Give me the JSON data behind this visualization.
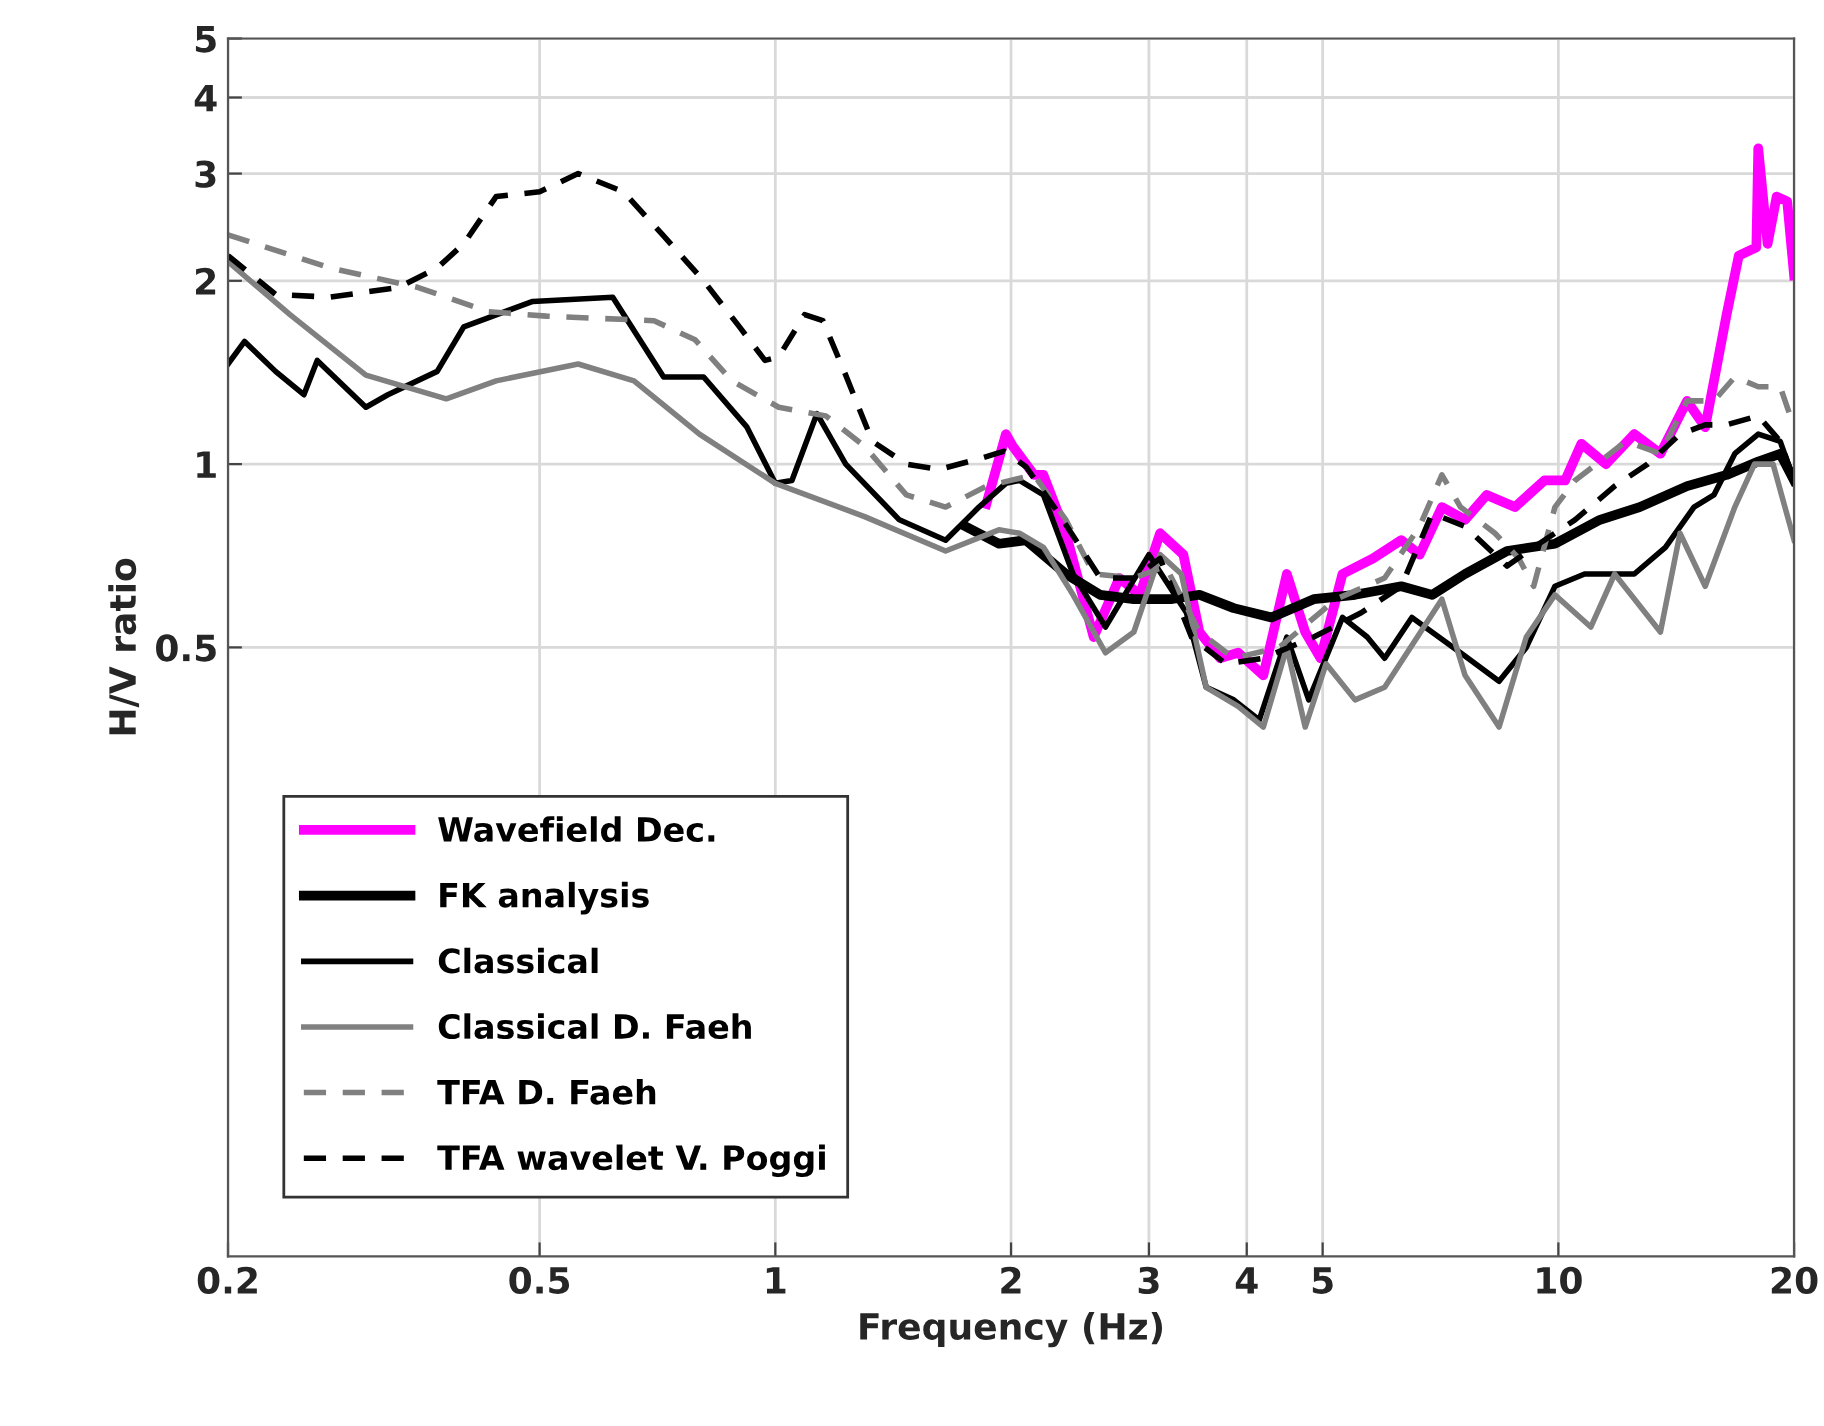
{
  "chart_data": {
    "type": "line",
    "xlabel": "Frequency (Hz)",
    "ylabel": "H/V ratio",
    "log": "xy",
    "grid": true,
    "legend": "bottom left",
    "xlim": [
      0.2,
      20
    ],
    "ylim": [
      0.05,
      5
    ],
    "xticks": [
      0.2,
      0.5,
      1,
      2,
      3,
      4,
      5,
      10,
      20
    ],
    "yticks": [
      0.5,
      1,
      2,
      3,
      4,
      5
    ],
    "series": [
      {
        "name": "Wavefield Dec.",
        "color": "#ff00ff",
        "line_style": "solid",
        "x": [
          1.86,
          1.97,
          2.01,
          2.14,
          2.2,
          2.35,
          2.55,
          2.75,
          2.92,
          3.1,
          3.32,
          3.48,
          3.7,
          3.9,
          4.2,
          4.5,
          4.75,
          4.97,
          5.3,
          5.8,
          6.3,
          6.65,
          7.1,
          7.6,
          8.1,
          8.8,
          9.6,
          10.2,
          10.7,
          11.5,
          12.5,
          13.5,
          14.6,
          15.4,
          16.4,
          17.0,
          17.9,
          18.0,
          18.5,
          19.0,
          19.6,
          20.0
        ],
        "values": [
          0.86,
          1.12,
          1.07,
          0.96,
          0.96,
          0.77,
          0.52,
          0.65,
          0.61,
          0.77,
          0.71,
          0.53,
          0.48,
          0.49,
          0.45,
          0.66,
          0.53,
          0.48,
          0.66,
          0.7,
          0.75,
          0.71,
          0.85,
          0.81,
          0.89,
          0.85,
          0.94,
          0.94,
          1.08,
          1.0,
          1.12,
          1.04,
          1.27,
          1.15,
          1.76,
          2.2,
          2.27,
          3.3,
          2.3,
          2.75,
          2.7,
          2.04
        ]
      },
      {
        "name": "FK analysis",
        "color": "#000000",
        "line_style": "solid",
        "x": [
          1.75,
          1.93,
          2.09,
          2.35,
          2.6,
          2.87,
          3.2,
          3.48,
          3.85,
          4.3,
          4.87,
          5.5,
          6.3,
          6.9,
          7.6,
          8.6,
          9.9,
          11.3,
          12.7,
          14.6,
          16.4,
          18.0,
          19.2,
          20.0
        ],
        "values": [
          0.79,
          0.74,
          0.75,
          0.66,
          0.61,
          0.6,
          0.6,
          0.61,
          0.58,
          0.56,
          0.6,
          0.61,
          0.63,
          0.61,
          0.66,
          0.72,
          0.74,
          0.81,
          0.85,
          0.92,
          0.96,
          1.01,
          1.04,
          0.94
        ]
      },
      {
        "name": "Classical",
        "color": "#000000",
        "line_style": "solid",
        "x": [
          0.2,
          0.21,
          0.23,
          0.25,
          0.26,
          0.3,
          0.32,
          0.37,
          0.4,
          0.49,
          0.62,
          0.72,
          0.81,
          0.92,
          1.0,
          1.05,
          1.13,
          1.23,
          1.44,
          1.65,
          1.82,
          1.97,
          2.05,
          2.2,
          2.4,
          2.64,
          3.0,
          3.35,
          3.55,
          3.85,
          4.15,
          4.5,
          4.8,
          5.3,
          5.7,
          6.0,
          6.5,
          7.5,
          8.4,
          9.1,
          9.9,
          10.8,
          12.5,
          13.7,
          14.9,
          15.8,
          16.8,
          18.0,
          19.2,
          20.0
        ],
        "values": [
          1.46,
          1.59,
          1.42,
          1.3,
          1.48,
          1.24,
          1.3,
          1.42,
          1.68,
          1.85,
          1.88,
          1.39,
          1.39,
          1.15,
          0.93,
          0.94,
          1.21,
          1.0,
          0.81,
          0.75,
          0.85,
          0.93,
          0.94,
          0.89,
          0.66,
          0.54,
          0.71,
          0.57,
          0.43,
          0.41,
          0.38,
          0.52,
          0.41,
          0.56,
          0.52,
          0.48,
          0.56,
          0.49,
          0.44,
          0.5,
          0.63,
          0.66,
          0.66,
          0.73,
          0.85,
          0.89,
          1.04,
          1.12,
          1.09,
          0.94
        ]
      },
      {
        "name": "Classical D. Faeh",
        "color": "#808080",
        "line_style": "solid",
        "x": [
          0.2,
          0.24,
          0.3,
          0.38,
          0.44,
          0.56,
          0.66,
          0.8,
          1.0,
          1.3,
          1.65,
          1.93,
          2.05,
          2.2,
          2.4,
          2.64,
          2.87,
          3.1,
          3.3,
          3.55,
          3.9,
          4.2,
          4.5,
          4.75,
          5.05,
          5.5,
          6.0,
          7.1,
          7.6,
          8.4,
          9.1,
          9.9,
          11.0,
          11.8,
          13.5,
          14.3,
          15.4,
          16.8,
          17.8,
          18.8,
          20.0
        ],
        "values": [
          2.15,
          1.76,
          1.4,
          1.28,
          1.37,
          1.46,
          1.37,
          1.12,
          0.93,
          0.82,
          0.72,
          0.78,
          0.77,
          0.73,
          0.61,
          0.49,
          0.53,
          0.71,
          0.66,
          0.43,
          0.4,
          0.37,
          0.5,
          0.37,
          0.47,
          0.41,
          0.43,
          0.6,
          0.45,
          0.37,
          0.52,
          0.61,
          0.54,
          0.66,
          0.53,
          0.77,
          0.63,
          0.85,
          1.0,
          1.0,
          0.75
        ]
      },
      {
        "name": "TFA D. Faeh",
        "color": "#808080",
        "line_style": "dashed",
        "x": [
          0.2,
          0.27,
          0.35,
          0.43,
          0.51,
          0.7,
          0.79,
          0.88,
          1.01,
          1.16,
          1.3,
          1.47,
          1.65,
          1.86,
          2.14,
          2.35,
          2.55,
          2.87,
          3.15,
          3.48,
          3.85,
          4.4,
          5.2,
          6.0,
          6.65,
          7.1,
          7.5,
          8.3,
          8.9,
          9.3,
          9.9,
          10.5,
          11.3,
          12.2,
          13.5,
          14.6,
          15.8,
          16.8,
          18.0,
          19.2,
          20.0
        ],
        "values": [
          2.38,
          2.1,
          1.95,
          1.78,
          1.75,
          1.72,
          1.6,
          1.37,
          1.24,
          1.2,
          1.07,
          0.89,
          0.85,
          0.92,
          0.96,
          0.81,
          0.66,
          0.65,
          0.68,
          0.53,
          0.48,
          0.5,
          0.6,
          0.65,
          0.79,
          0.96,
          0.85,
          0.77,
          0.7,
          0.63,
          0.85,
          0.94,
          1.01,
          1.09,
          1.04,
          1.27,
          1.27,
          1.39,
          1.34,
          1.34,
          1.15
        ]
      },
      {
        "name": "TFA wavelet V. Poggi",
        "color": "#000000",
        "line_style": "dashed",
        "x": [
          0.2,
          0.23,
          0.27,
          0.33,
          0.37,
          0.4,
          0.44,
          0.5,
          0.56,
          0.64,
          0.72,
          0.81,
          0.9,
          0.97,
          1.01,
          1.09,
          1.15,
          1.23,
          1.33,
          1.47,
          1.62,
          1.82,
          1.96,
          2.09,
          2.3,
          2.6,
          2.87,
          3.1,
          3.4,
          3.76,
          4.2,
          4.87,
          5.6,
          6.3,
          6.9,
          7.6,
          8.6,
          9.3,
          10.5,
          11.8,
          13.0,
          14.3,
          15.4,
          16.4,
          18.0,
          19.2,
          20.0
        ],
        "values": [
          2.2,
          1.9,
          1.88,
          1.95,
          2.1,
          2.3,
          2.75,
          2.8,
          3.0,
          2.8,
          2.37,
          2.0,
          1.68,
          1.48,
          1.5,
          1.76,
          1.72,
          1.4,
          1.09,
          1.0,
          0.98,
          1.02,
          1.05,
          0.99,
          0.83,
          0.65,
          0.65,
          0.7,
          0.52,
          0.47,
          0.48,
          0.52,
          0.57,
          0.63,
          0.83,
          0.79,
          0.68,
          0.73,
          0.81,
          0.92,
          1.0,
          1.12,
          1.16,
          1.16,
          1.2,
          1.09,
          0.94
        ]
      }
    ]
  }
}
